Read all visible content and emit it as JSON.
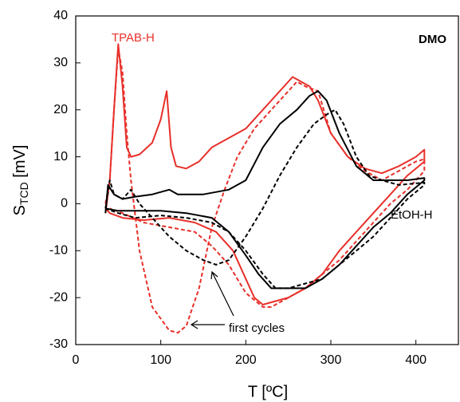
{
  "chart_data": {
    "type": "line",
    "xlabel": "T [ºC]",
    "ylabel": {
      "main": "S",
      "sub": "TCD",
      "unit": " [mV]"
    },
    "annotations": {
      "panel": "DMO",
      "red": "TPAB-H",
      "black": "EtOH-H",
      "arrow": "first cycles"
    },
    "xlim": [
      0,
      450
    ],
    "xticks": [
      0,
      100,
      200,
      300,
      400
    ],
    "ylim": [
      -30,
      40
    ],
    "yticks": [
      -30,
      -20,
      -10,
      0,
      10,
      20,
      30,
      40
    ],
    "series": [
      {
        "color": "#e8302a",
        "dash": false,
        "x": [
          35,
          40,
          45,
          50,
          55,
          60,
          65,
          75,
          90,
          100,
          107,
          112,
          118,
          130,
          145,
          160,
          180,
          200,
          220,
          240,
          255,
          265,
          275,
          285,
          300,
          320,
          340,
          360,
          380,
          400,
          410,
          410,
          390,
          370,
          350,
          330,
          310,
          290,
          270,
          250,
          230,
          220,
          210,
          200,
          185,
          165,
          140,
          110,
          80,
          55,
          40,
          35
        ],
        "values": [
          -2,
          5,
          20,
          34,
          25,
          12,
          10,
          10.5,
          13,
          18,
          24,
          12,
          8,
          7.5,
          9,
          12,
          14,
          16,
          20,
          24,
          27,
          26,
          25,
          22,
          15,
          10,
          7.5,
          6.5,
          8,
          10,
          11.5,
          9,
          6,
          2,
          -2,
          -6,
          -10,
          -15,
          -18,
          -20,
          -21,
          -21.5,
          -20,
          -16,
          -10,
          -6,
          -4,
          -3,
          -3.5,
          -3,
          -2,
          -1
        ]
      },
      {
        "color": "#e8302a",
        "dash": true,
        "x": [
          35,
          40,
          45,
          50,
          55,
          60,
          65,
          75,
          90,
          110,
          120,
          130,
          145,
          160,
          175,
          190,
          210,
          230,
          250,
          260,
          270,
          285,
          300,
          320,
          340,
          360,
          380,
          400,
          410,
          410,
          390,
          370,
          350,
          330,
          310,
          290,
          270,
          250,
          230,
          220,
          200,
          180,
          160,
          140,
          110,
          80,
          55,
          40
        ],
        "values": [
          0,
          5,
          20,
          33,
          28,
          15,
          5,
          -10,
          -22,
          -27,
          -27.5,
          -26,
          -18,
          -5,
          3,
          10,
          16,
          20,
          24,
          26,
          25,
          24,
          15,
          10,
          7,
          5,
          7,
          9,
          9.5,
          7,
          3,
          0,
          -4,
          -8,
          -12,
          -15,
          -18,
          -20,
          -22,
          -22,
          -19,
          -13,
          -9,
          -6,
          -5,
          -4,
          -2,
          -1
        ]
      },
      {
        "color": "#000000",
        "dash": false,
        "x": [
          35,
          38,
          45,
          55,
          70,
          90,
          110,
          120,
          150,
          180,
          200,
          220,
          240,
          260,
          275,
          285,
          295,
          310,
          330,
          350,
          370,
          390,
          410,
          410,
          390,
          370,
          350,
          330,
          310,
          290,
          270,
          250,
          230,
          215,
          200,
          180,
          160,
          130,
          100,
          70,
          50,
          35
        ],
        "values": [
          -2,
          4,
          2,
          1,
          1.5,
          2,
          3,
          2,
          2,
          3,
          5,
          12,
          17,
          20,
          23,
          24,
          22,
          15,
          8,
          5,
          5,
          5,
          5.5,
          5,
          2,
          -2,
          -5,
          -9,
          -13,
          -16,
          -18,
          -18,
          -18,
          -15,
          -11,
          -6,
          -3,
          -2,
          -1.5,
          -1.5,
          -1.5,
          -1
        ]
      },
      {
        "color": "#000000",
        "dash": true,
        "x": [
          35,
          40,
          45,
          55,
          65,
          75,
          90,
          110,
          130,
          150,
          165,
          180,
          200,
          220,
          240,
          260,
          280,
          295,
          305,
          315,
          330,
          345,
          360,
          380,
          410,
          410,
          390,
          370,
          350,
          330,
          310,
          290,
          270,
          250,
          235,
          220,
          200,
          180,
          160,
          130,
          100,
          70,
          50,
          35
        ],
        "values": [
          -1,
          5,
          2,
          1,
          3,
          0,
          -3,
          -7,
          -10,
          -12,
          -13,
          -12,
          -7,
          -1,
          6,
          12,
          17,
          19,
          20,
          17,
          10,
          6,
          5,
          4,
          4.5,
          4,
          1,
          -3,
          -7,
          -10,
          -13,
          -16,
          -17,
          -18,
          -18,
          -15,
          -10,
          -6,
          -4,
          -3,
          -2.5,
          -3,
          -2,
          -1
        ]
      }
    ]
  }
}
